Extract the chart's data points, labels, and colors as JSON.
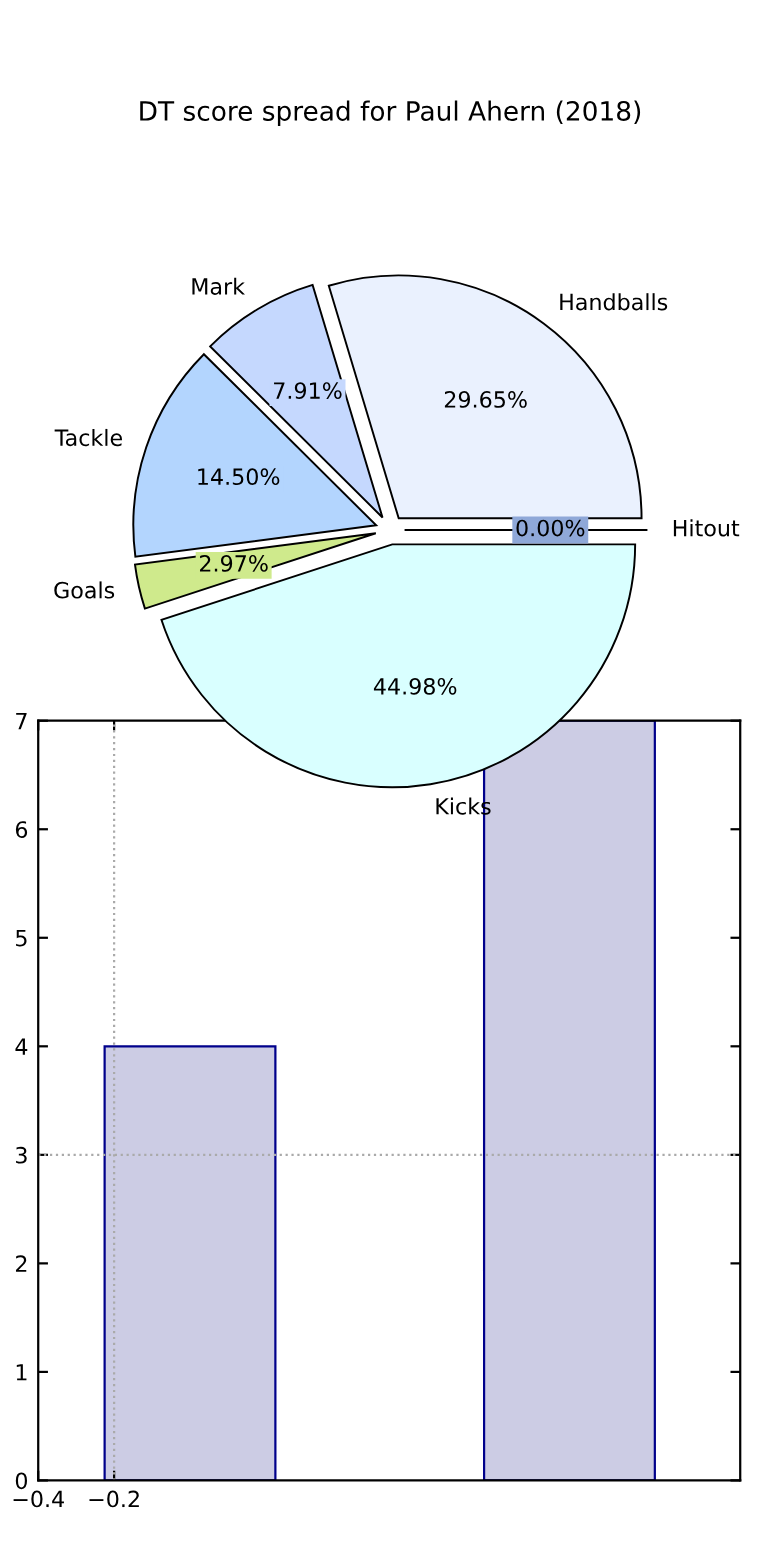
{
  "chart_data": [
    {
      "type": "bar",
      "x": [
        0,
        1
      ],
      "values": [
        4,
        7
      ],
      "color": "#ccccE4",
      "xlim": [
        -0.4,
        1.45
      ],
      "ylim": [
        0,
        7
      ],
      "xticks": [
        {
          "value": -0.4,
          "label": "−0.4"
        },
        {
          "value": -0.2,
          "label": "−0.2"
        }
      ],
      "yticks": [
        0,
        1,
        2,
        3,
        4,
        5,
        6,
        7
      ],
      "ref_lines": [
        {
          "axis": "y",
          "value": 3,
          "line_style": "dotted",
          "color": "#aaaaaa"
        },
        {
          "axis": "x",
          "value": -0.2,
          "line_style": "dotted",
          "color": "#aaaaaa"
        }
      ]
    },
    {
      "type": "pie",
      "title": "DT score spread for Paul Ahern (2018)",
      "categories": [
        "Handballs",
        "Mark",
        "Tackle",
        "Goals",
        "Kicks",
        "Hitout"
      ],
      "values": [
        29.65,
        7.91,
        14.5,
        2.97,
        44.98,
        0.0
      ],
      "colors": [
        "#eaf1fe",
        "#c5d8fe",
        "#b3d5fe",
        "#cfea8c",
        "#d9ffff",
        "#8fa8d8"
      ],
      "value_labels": [
        "29.65%",
        "7.91%",
        "14.50%",
        "2.97%",
        "44.98%",
        "0.00%"
      ],
      "data_labels": true
    }
  ]
}
